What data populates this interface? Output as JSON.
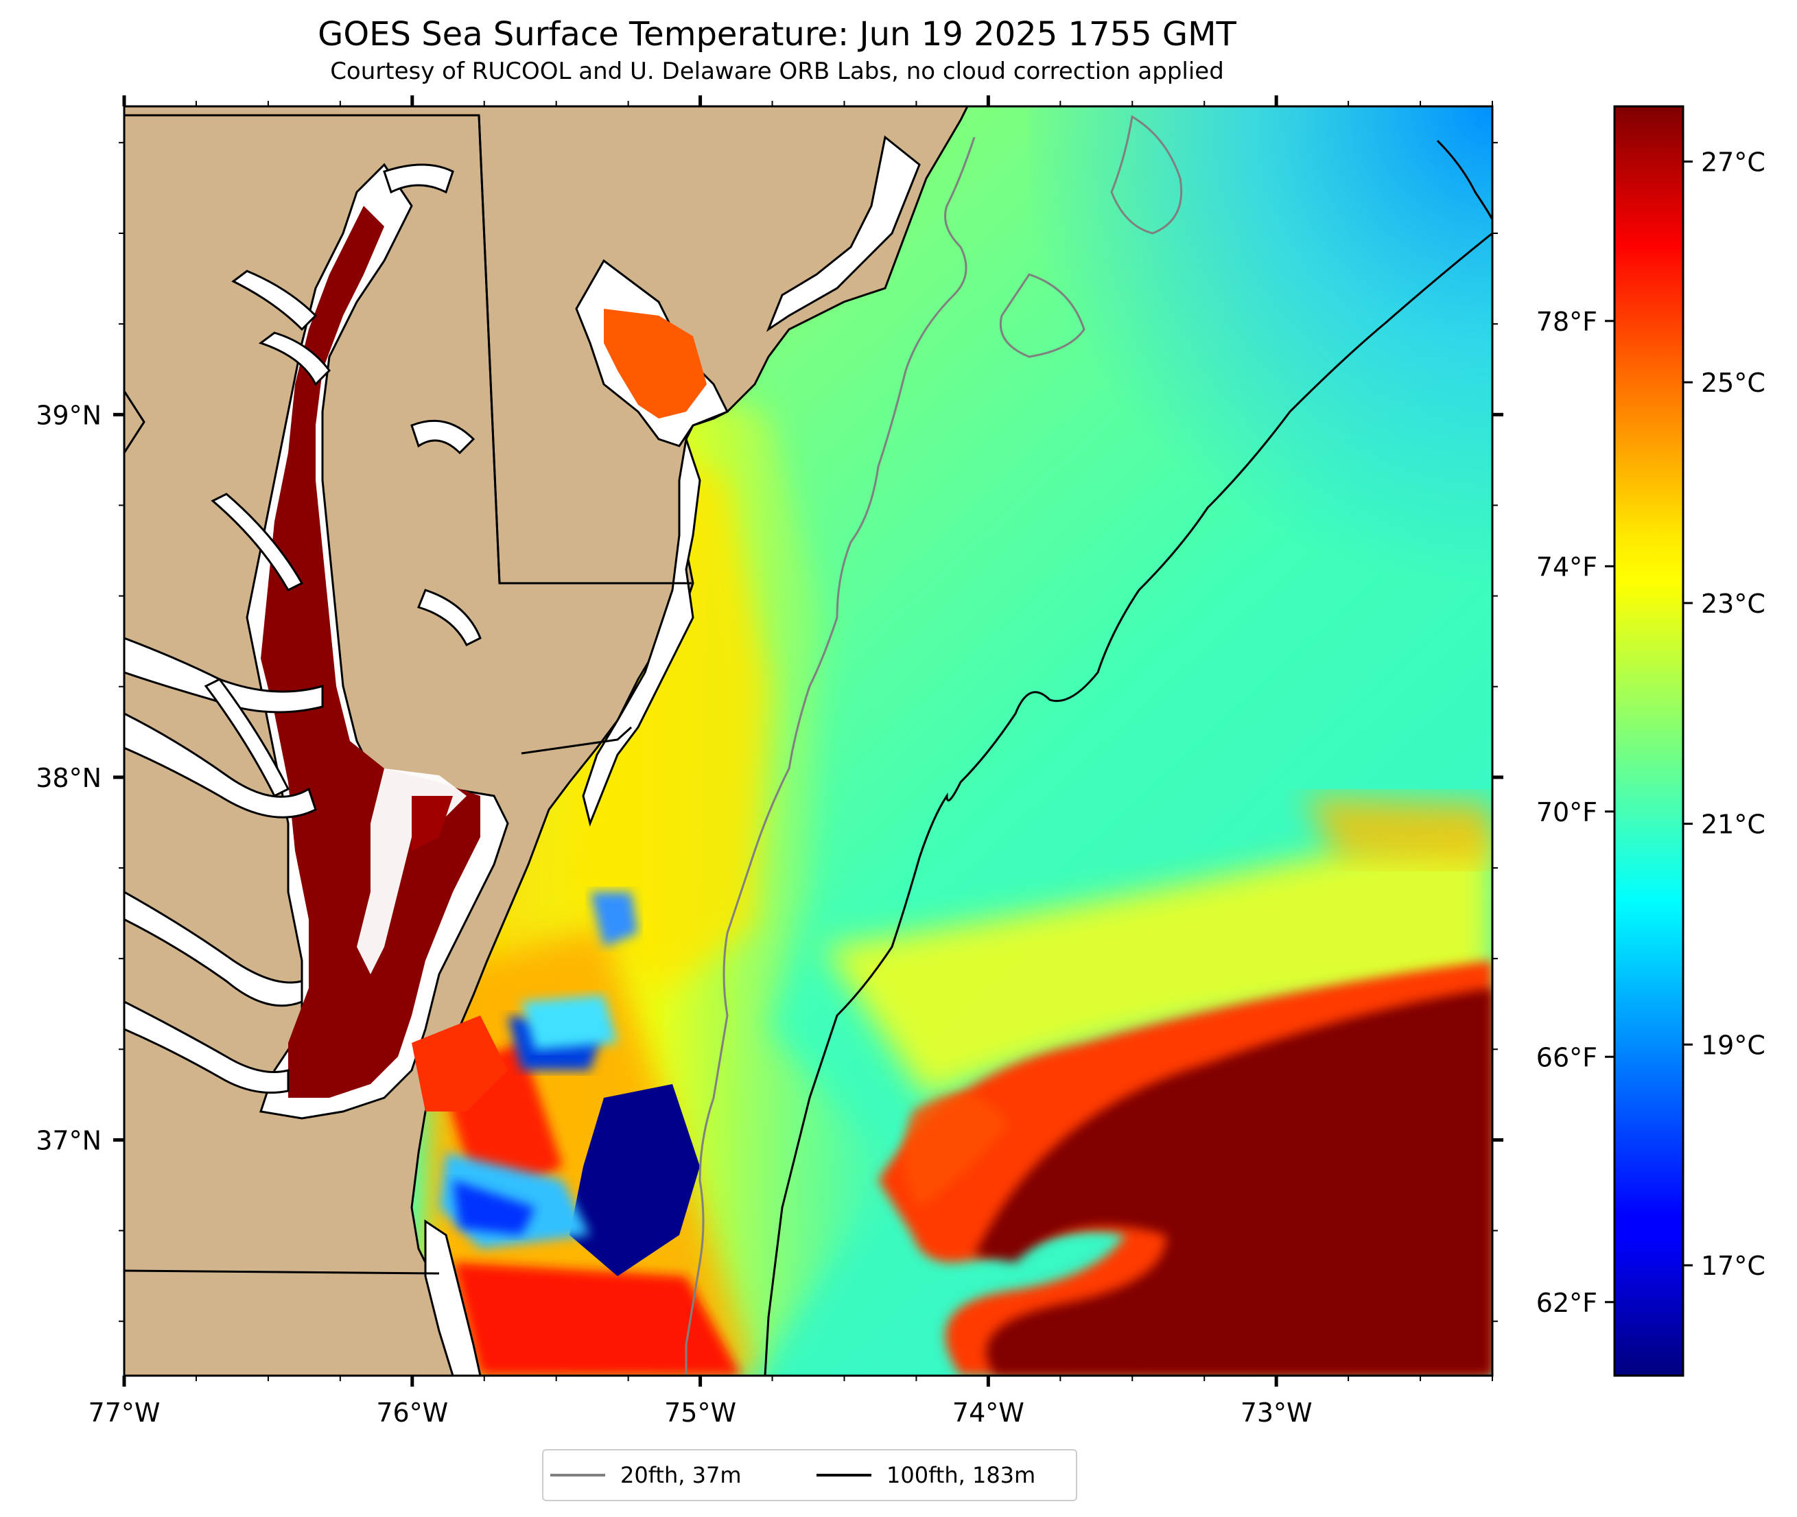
{
  "title": "GOES Sea Surface Temperature: Jun 19 2025 1755 GMT",
  "subtitle": "Courtesy of RUCOOL and U. Delaware ORB Labs, no cloud correction applied",
  "map": {
    "lon_range": [
      -77.0,
      -72.25
    ],
    "lat_range": [
      36.35,
      39.85
    ],
    "x_ticks": [
      "77°W",
      "76°W",
      "75°W",
      "74°W",
      "73°W"
    ],
    "y_ticks": [
      "39°N",
      "38°N",
      "37°N"
    ],
    "land_color": "#d2b48c",
    "no_data_color": "#ffffff"
  },
  "colorbar": {
    "colormap": "jet",
    "range_c": [
      16.0,
      27.5
    ],
    "celsius_ticks": [
      "27°C",
      "25°C",
      "23°C",
      "21°C",
      "19°C",
      "17°C"
    ],
    "fahrenheit_ticks": [
      "78°F",
      "74°F",
      "70°F",
      "66°F",
      "62°F"
    ]
  },
  "legend": [
    {
      "label": "20fth, 37m",
      "color": "#808080"
    },
    {
      "label": "100fth, 183m",
      "color": "#000000"
    }
  ]
}
